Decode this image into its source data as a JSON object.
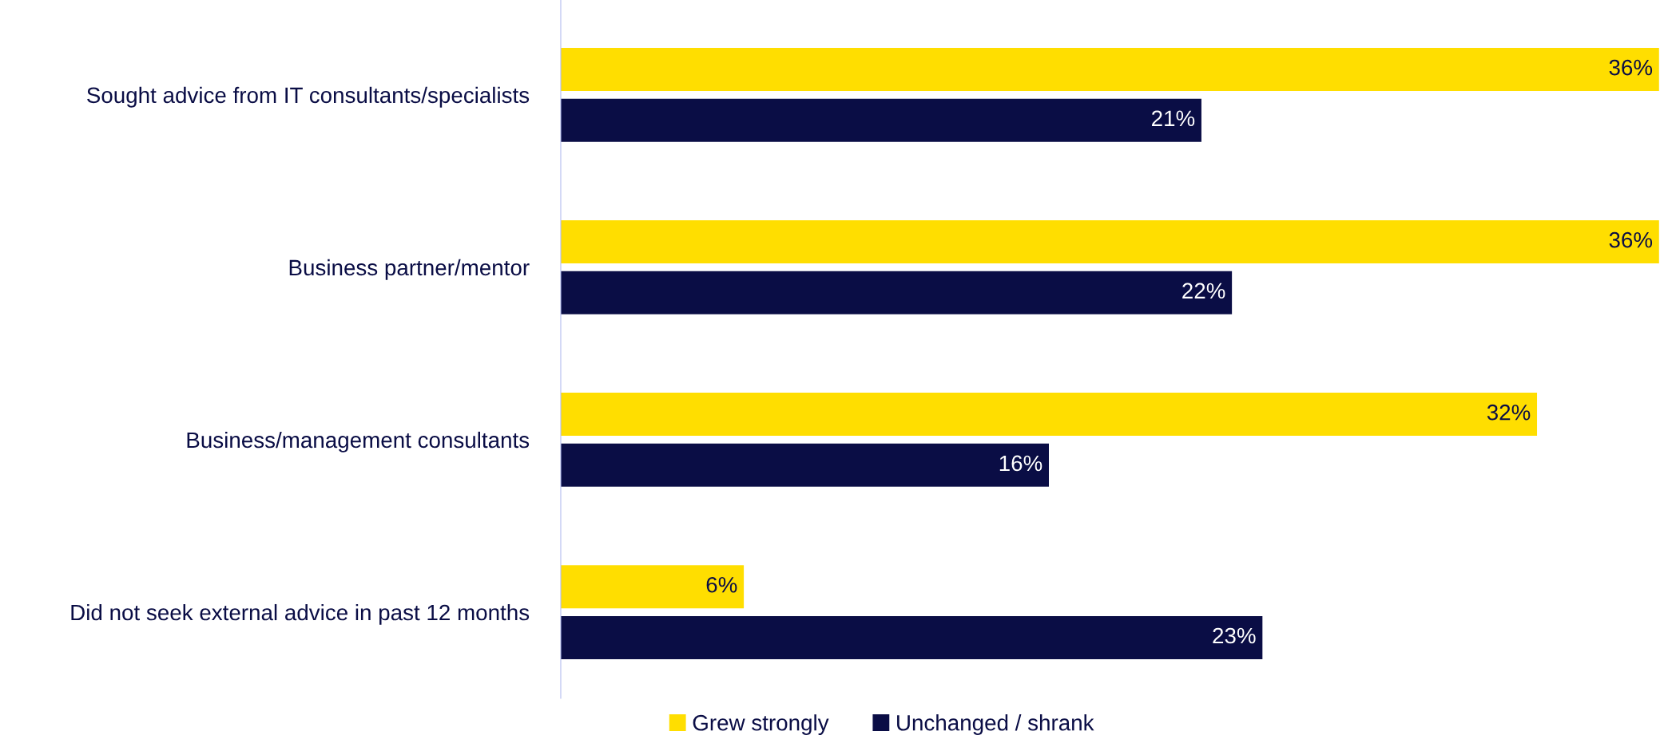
{
  "chart_data": {
    "type": "bar",
    "orientation": "horizontal",
    "categories": [
      "Sought advice from IT consultants/specialists",
      "Business partner/mentor",
      "Business/management consultants",
      "Did not seek external advice in past 12 months"
    ],
    "series": [
      {
        "name": "Grew strongly",
        "color": "#ffde00",
        "values": [
          36,
          36,
          32,
          6
        ],
        "value_labels": [
          "36%",
          "36%",
          "32%",
          "6%"
        ]
      },
      {
        "name": "Unchanged / shrank",
        "color": "#0a0d45",
        "values": [
          21,
          22,
          16,
          23
        ],
        "value_labels": [
          "21%",
          "22%",
          "16%",
          "23%"
        ]
      }
    ],
    "legend": "bottom",
    "grid": false
  }
}
